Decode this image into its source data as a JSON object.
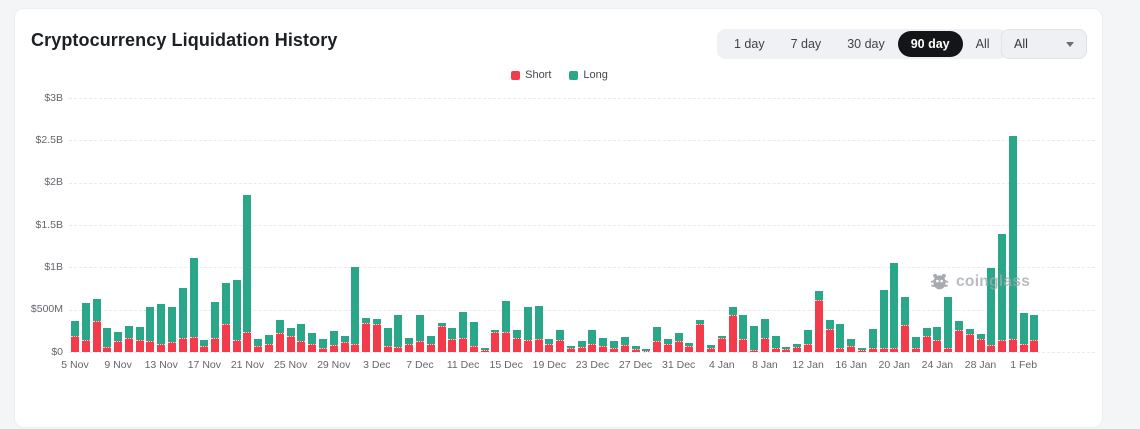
{
  "page": {
    "title": "Cryptocurrency Liquidation History"
  },
  "controls": {
    "range_buttons": [
      {
        "label": "1 day",
        "selected": false
      },
      {
        "label": "7 day",
        "selected": false
      },
      {
        "label": "30 day",
        "selected": false
      },
      {
        "label": "90 day",
        "selected": true
      },
      {
        "label": "All",
        "selected": false
      }
    ],
    "selected_pill_color": "#141519",
    "coin_dropdown": {
      "value": "All"
    }
  },
  "watermark": {
    "text": "coinglass"
  },
  "chart_data": {
    "type": "bar",
    "stacked": true,
    "title": "Cryptocurrency Liquidation History",
    "unit": "million USD",
    "grid": "horizontal-dashed",
    "legend_position": "top-center",
    "ylim_musd": [
      0,
      3000
    ],
    "y_tick_labels": [
      "$0",
      "$500M",
      "$1B",
      "$1.5B",
      "$2B",
      "$2.5B",
      "$3B"
    ],
    "x_tick_every": 4,
    "x": [
      "5 Nov",
      "6 Nov",
      "7 Nov",
      "8 Nov",
      "9 Nov",
      "10 Nov",
      "11 Nov",
      "12 Nov",
      "13 Nov",
      "14 Nov",
      "15 Nov",
      "16 Nov",
      "17 Nov",
      "18 Nov",
      "19 Nov",
      "20 Nov",
      "21 Nov",
      "22 Nov",
      "23 Nov",
      "24 Nov",
      "25 Nov",
      "26 Nov",
      "27 Nov",
      "28 Nov",
      "29 Nov",
      "30 Nov",
      "1 Dec",
      "2 Dec",
      "3 Dec",
      "4 Dec",
      "5 Dec",
      "6 Dec",
      "7 Dec",
      "8 Dec",
      "9 Dec",
      "10 Dec",
      "11 Dec",
      "12 Dec",
      "13 Dec",
      "14 Dec",
      "15 Dec",
      "16 Dec",
      "17 Dec",
      "18 Dec",
      "19 Dec",
      "20 Dec",
      "21 Dec",
      "22 Dec",
      "23 Dec",
      "24 Dec",
      "25 Dec",
      "26 Dec",
      "27 Dec",
      "28 Dec",
      "29 Dec",
      "30 Dec",
      "31 Dec",
      "1 Jan",
      "2 Jan",
      "3 Jan",
      "4 Jan",
      "5 Jan",
      "6 Jan",
      "7 Jan",
      "8 Jan",
      "9 Jan",
      "10 Jan",
      "11 Jan",
      "12 Jan",
      "13 Jan",
      "14 Jan",
      "15 Jan",
      "16 Jan",
      "17 Jan",
      "18 Jan",
      "19 Jan",
      "20 Jan",
      "21 Jan",
      "22 Jan",
      "23 Jan",
      "24 Jan",
      "25 Jan",
      "26 Jan",
      "27 Jan",
      "28 Jan",
      "29 Jan",
      "30 Jan",
      "31 Jan",
      "1 Feb",
      "2 Feb"
    ],
    "series": [
      {
        "name": "Short",
        "color": "#f23c4c",
        "values_musd": [
          190,
          140,
          370,
          55,
          125,
          165,
          145,
          135,
          95,
          115,
          165,
          175,
          65,
          165,
          330,
          140,
          240,
          70,
          100,
          225,
          185,
          135,
          95,
          45,
          80,
          120,
          90,
          345,
          335,
          75,
          55,
          95,
          130,
          100,
          310,
          150,
          170,
          65,
          25,
          240,
          240,
          165,
          140,
          150,
          100,
          140,
          45,
          60,
          90,
          70,
          50,
          85,
          40,
          15,
          130,
          100,
          130,
          70,
          330,
          50,
          165,
          440,
          150,
          25,
          165,
          50,
          30,
          60,
          90,
          615,
          270,
          50,
          70,
          25,
          50,
          45,
          50,
          320,
          50,
          190,
          140,
          50,
          265,
          210,
          150,
          85,
          140,
          150,
          100,
          140
        ]
      },
      {
        "name": "Long",
        "color": "#2aa689",
        "values_musd": [
          180,
          440,
          260,
          225,
          115,
          140,
          155,
          395,
          470,
          420,
          590,
          935,
          75,
          425,
          490,
          705,
          1620,
          80,
          100,
          150,
          95,
          195,
          135,
          105,
          170,
          70,
          910,
          55,
          50,
          210,
          385,
          65,
          310,
          85,
          30,
          130,
          300,
          295,
          25,
          15,
          365,
          95,
          395,
          395,
          50,
          120,
          25,
          70,
          170,
          100,
          75,
          95,
          30,
          20,
          160,
          50,
          90,
          40,
          45,
          35,
          25,
          90,
          290,
          285,
          225,
          140,
          30,
          40,
          170,
          100,
          105,
          280,
          80,
          20,
          220,
          690,
          1000,
          325,
          130,
          90,
          150,
          595,
          105,
          60,
          60,
          905,
          1250,
          2400,
          355,
          300
        ]
      }
    ]
  }
}
